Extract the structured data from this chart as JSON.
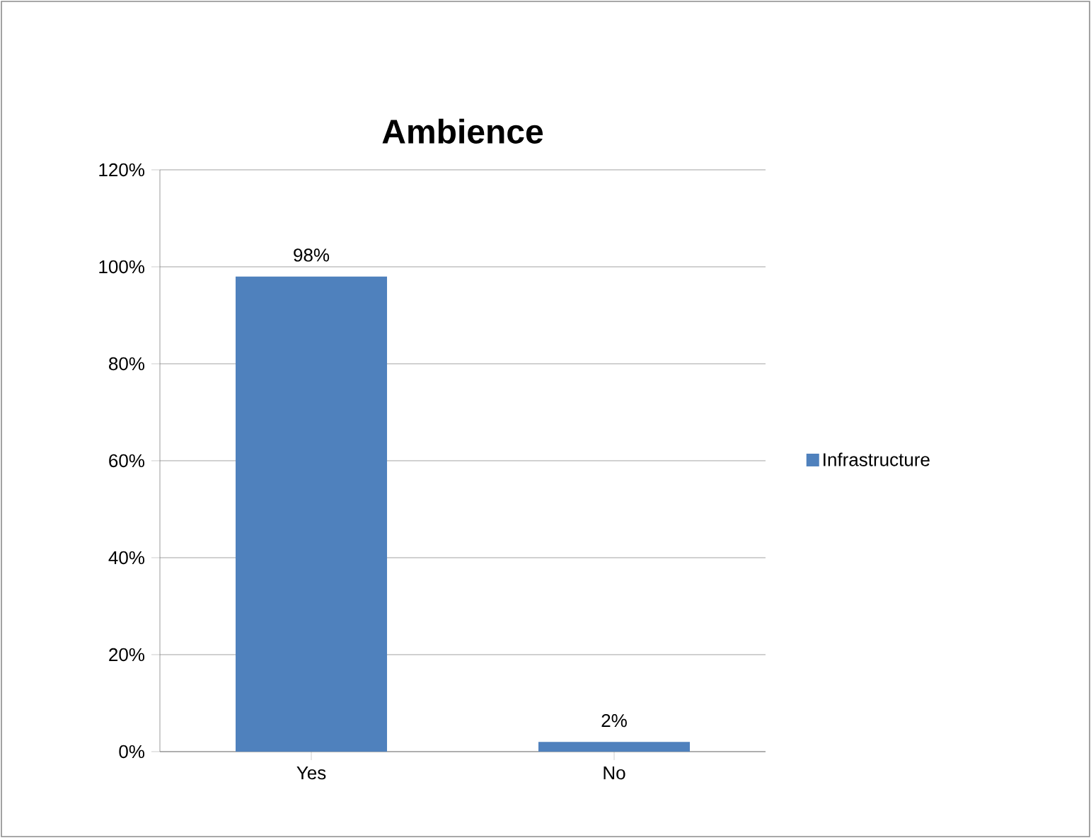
{
  "chart_data": {
    "type": "bar",
    "title": "Ambience",
    "categories": [
      "Yes",
      "No"
    ],
    "series": [
      {
        "name": "Infrastructure",
        "color": "#4f81bd",
        "values": [
          98,
          2
        ],
        "value_labels": [
          "98%",
          "2%"
        ]
      }
    ],
    "ylim": [
      0,
      120
    ],
    "yticks": [
      {
        "value": 0,
        "label": "0%"
      },
      {
        "value": 20,
        "label": "20%"
      },
      {
        "value": 40,
        "label": "40%"
      },
      {
        "value": 60,
        "label": "60%"
      },
      {
        "value": 80,
        "label": "80%"
      },
      {
        "value": 100,
        "label": "100%"
      },
      {
        "value": 120,
        "label": "120%"
      }
    ],
    "grid": "y",
    "legend": "right"
  }
}
